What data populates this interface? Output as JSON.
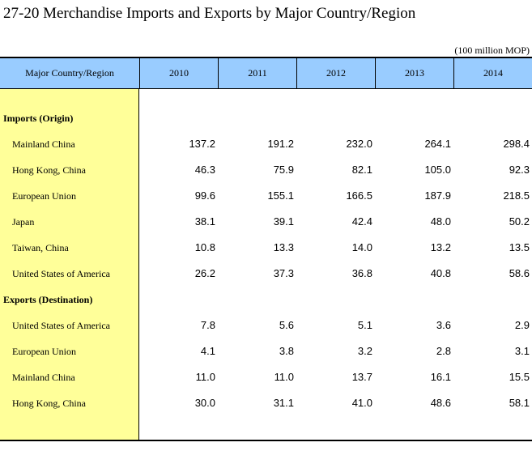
{
  "title": "27-20  Merchandise Imports and Exports by Major Country/Region",
  "unit": "(100 million MOP)",
  "table": {
    "header": {
      "first": "Major Country/Region",
      "years": [
        "2010",
        "2011",
        "2012",
        "2013",
        "2014"
      ]
    },
    "imports": {
      "heading": "Imports (Origin)",
      "rows": [
        {
          "label": "Mainland China",
          "values": [
            "137.2",
            "191.2",
            "232.0",
            "264.1",
            "298.4"
          ]
        },
        {
          "label": "Hong Kong, China",
          "values": [
            "46.3",
            "75.9",
            "82.1",
            "105.0",
            "92.3"
          ]
        },
        {
          "label": "European Union",
          "values": [
            "99.6",
            "155.1",
            "166.5",
            "187.9",
            "218.5"
          ]
        },
        {
          "label": "Japan",
          "values": [
            "38.1",
            "39.1",
            "42.4",
            "48.0",
            "50.2"
          ]
        },
        {
          "label": "Taiwan, China",
          "values": [
            "10.8",
            "13.3",
            "14.0",
            "13.2",
            "13.5"
          ]
        },
        {
          "label": "United States of America",
          "values": [
            "26.2",
            "37.3",
            "36.8",
            "40.8",
            "58.6"
          ]
        }
      ]
    },
    "exports": {
      "heading": "Exports (Destination)",
      "rows": [
        {
          "label": "United States of America",
          "values": [
            "7.8",
            "5.6",
            "5.1",
            "3.6",
            "2.9"
          ]
        },
        {
          "label": "European Union",
          "values": [
            "4.1",
            "3.8",
            "3.2",
            "2.8",
            "3.1"
          ]
        },
        {
          "label": "Mainland China",
          "values": [
            "11.0",
            "11.0",
            "13.7",
            "16.1",
            "15.5"
          ]
        },
        {
          "label": "Hong Kong, China",
          "values": [
            "30.0",
            "31.1",
            "41.0",
            "48.6",
            "58.1"
          ]
        }
      ]
    }
  },
  "colors": {
    "header_background": "#99ccff",
    "label_column_background": "#ffff99"
  }
}
